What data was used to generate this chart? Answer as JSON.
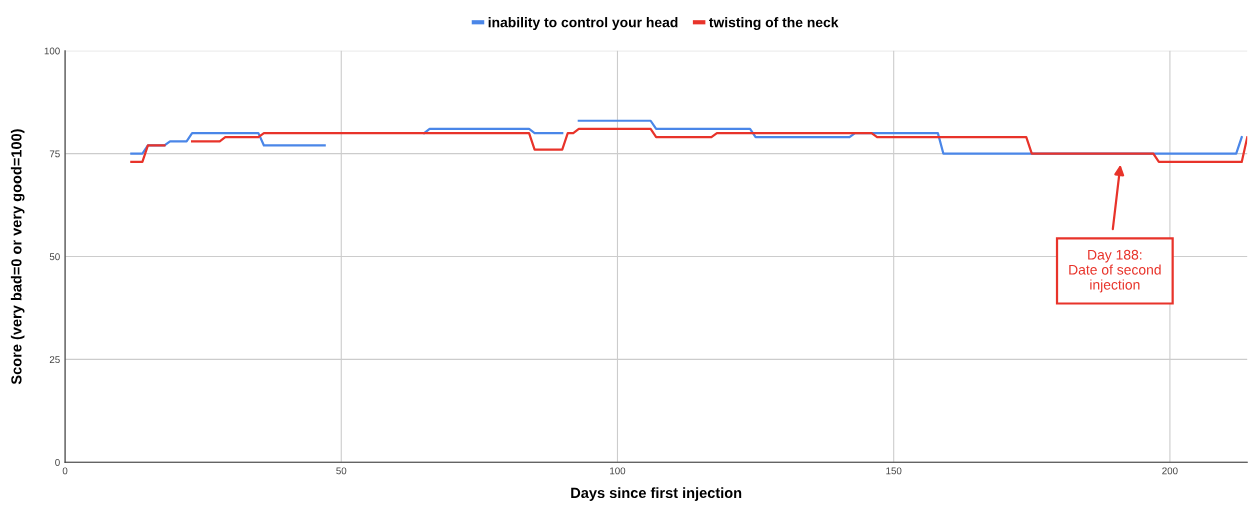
{
  "chart_data": {
    "type": "line",
    "xlabel": "Days since first injection",
    "ylabel": "Score (very bad=0 or very good=100)",
    "xlim": [
      0,
      214
    ],
    "ylim": [
      0,
      100
    ],
    "xticks": [
      0,
      50,
      100,
      150,
      200
    ],
    "yticks": [
      0,
      25,
      50,
      75,
      100
    ],
    "grid": true,
    "legend": "top",
    "marker": "none",
    "line_style": "solid",
    "series": [
      {
        "name": "inability to control your head",
        "color": "#4a86e8",
        "x": [
          12,
          14,
          15,
          18,
          19,
          22,
          23,
          35,
          36,
          47,
          48,
          65,
          66,
          84,
          85,
          90,
          91,
          93,
          106,
          107,
          124,
          125,
          142,
          143,
          158,
          159,
          212,
          213
        ],
        "values": [
          75,
          75,
          77,
          77,
          78,
          78,
          80,
          80,
          77,
          77,
          null,
          80,
          81,
          81,
          80,
          80,
          null,
          83,
          83,
          81,
          81,
          79,
          79,
          80,
          80,
          75,
          75,
          79
        ]
      },
      {
        "name": "twisting of the neck",
        "color": "#e8332a",
        "x": [
          12,
          14,
          15,
          18,
          20,
          23,
          28,
          29,
          35,
          36,
          84,
          85,
          90,
          91,
          92,
          93,
          106,
          107,
          117,
          118,
          146,
          147,
          174,
          175,
          197,
          198,
          213,
          214
        ],
        "values": [
          73,
          73,
          77,
          77,
          null,
          78,
          78,
          79,
          79,
          80,
          80,
          76,
          76,
          80,
          80,
          81,
          81,
          79,
          79,
          80,
          80,
          79,
          79,
          75,
          75,
          73,
          73,
          79
        ]
      }
    ],
    "annotations": [
      "Day 188:\nDate of second\ninjection"
    ]
  }
}
